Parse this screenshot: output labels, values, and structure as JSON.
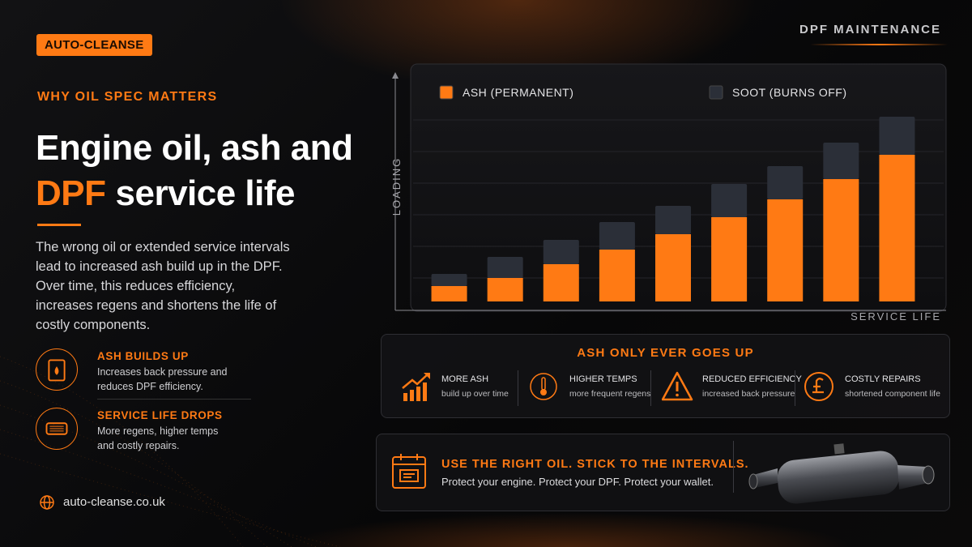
{
  "brand": "AUTO-CLEANSE",
  "topic": "DPF MAINTENANCE",
  "kicker": "WHY OIL SPEC MATTERS",
  "headline": {
    "line1": "Engine oil, ash and",
    "highlight": "DPF",
    "rest": "service life"
  },
  "intro": "The wrong oil or extended service intervals lead to increased ash build up in the DPF. Over time, this reduces efficiency, increases regens and shortens the life of costly components.",
  "features": [
    {
      "title": "ASH BUILDS UP",
      "text": "Increases back pressure and reduces DPF efficiency."
    },
    {
      "title": "SERVICE LIFE DROPS",
      "text": "More regens, higher temps and costly repairs."
    }
  ],
  "website": "auto-cleanse.co.uk",
  "chart_data": {
    "type": "stacked-bar",
    "x_label": "SERVICE LIFE",
    "y_label": "LOADING",
    "categories": [
      null,
      null,
      null,
      null,
      null,
      null,
      null,
      null,
      null
    ],
    "series": [
      {
        "name": "ASH (PERMANENT)",
        "color": "#ff7a14",
        "values": [
          19,
          29,
          46,
          64,
          83,
          104,
          126,
          151,
          181
        ]
      },
      {
        "name": "SOOT (BURNS OFF)",
        "color": "#2b2f38",
        "values": [
          15,
          26,
          30,
          34,
          35,
          41,
          41,
          45,
          47
        ]
      }
    ],
    "ylim": [
      0,
      240
    ]
  },
  "facts": {
    "title": "ASH ONLY EVER GOES UP",
    "items": [
      {
        "title": "MORE ASH",
        "text": "build up over time"
      },
      {
        "title": "HIGHER TEMPS",
        "text": "more frequent regens"
      },
      {
        "title": "REDUCED EFFICIENCY",
        "text": "increased back pressure"
      },
      {
        "title": "COSTLY REPAIRS",
        "text": "shortened component life"
      }
    ]
  },
  "cta": {
    "title": "USE THE RIGHT OIL. STICK TO THE INTERVALS.",
    "text": "Protect your engine. Protect your DPF. Protect your wallet."
  }
}
